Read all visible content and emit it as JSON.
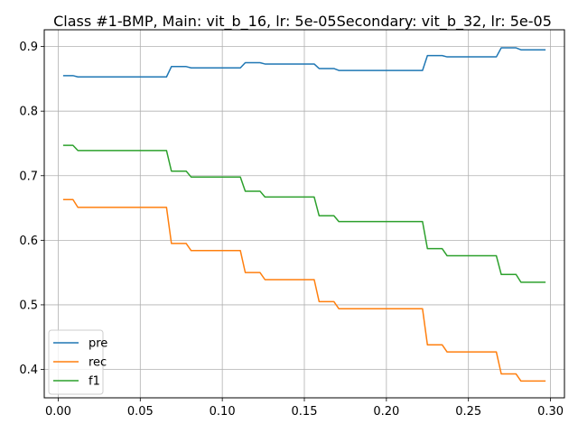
{
  "chart_data": {
    "type": "line",
    "title": "Class #1-BMP, Main: vit_b_16, lr: 5e-05Secondary: vit_b_32, lr: 5e-05",
    "xlabel": "",
    "ylabel": "",
    "xlim": [
      -0.0085,
      0.3085
    ],
    "ylim": [
      0.356,
      0.926
    ],
    "xticks": [
      0.0,
      0.05,
      0.1,
      0.15,
      0.2,
      0.25,
      0.3
    ],
    "xtick_labels": [
      "0.00",
      "0.05",
      "0.10",
      "0.15",
      "0.20",
      "0.25",
      "0.30"
    ],
    "yticks": [
      0.4,
      0.5,
      0.6,
      0.7,
      0.8,
      0.9
    ],
    "ytick_labels": [
      "0.4",
      "0.5",
      "0.6",
      "0.7",
      "0.8",
      "0.9"
    ],
    "grid": true,
    "legend_position": "lower-left",
    "series": [
      {
        "name": "pre",
        "color": "#1f77b4",
        "x": [
          0.003,
          0.009,
          0.012,
          0.066,
          0.069,
          0.078,
          0.081,
          0.111,
          0.114,
          0.123,
          0.126,
          0.156,
          0.159,
          0.168,
          0.171,
          0.222,
          0.225,
          0.234,
          0.237,
          0.267,
          0.27,
          0.279,
          0.282,
          0.297
        ],
        "values": [
          0.855,
          0.855,
          0.853,
          0.853,
          0.869,
          0.869,
          0.867,
          0.867,
          0.875,
          0.875,
          0.873,
          0.873,
          0.866,
          0.866,
          0.863,
          0.863,
          0.886,
          0.886,
          0.884,
          0.884,
          0.898,
          0.898,
          0.895,
          0.895
        ]
      },
      {
        "name": "rec",
        "color": "#ff7f0e",
        "x": [
          0.003,
          0.009,
          0.012,
          0.066,
          0.069,
          0.078,
          0.081,
          0.111,
          0.114,
          0.123,
          0.126,
          0.156,
          0.159,
          0.168,
          0.171,
          0.222,
          0.225,
          0.234,
          0.237,
          0.267,
          0.27,
          0.279,
          0.282,
          0.297
        ],
        "values": [
          0.663,
          0.663,
          0.651,
          0.651,
          0.595,
          0.595,
          0.584,
          0.584,
          0.55,
          0.55,
          0.539,
          0.539,
          0.505,
          0.505,
          0.494,
          0.494,
          0.438,
          0.438,
          0.427,
          0.427,
          0.393,
          0.393,
          0.382,
          0.382
        ]
      },
      {
        "name": "f1",
        "color": "#2ca02c",
        "x": [
          0.003,
          0.009,
          0.012,
          0.066,
          0.069,
          0.078,
          0.081,
          0.111,
          0.114,
          0.123,
          0.126,
          0.156,
          0.159,
          0.168,
          0.171,
          0.222,
          0.225,
          0.234,
          0.237,
          0.267,
          0.27,
          0.279,
          0.282,
          0.297
        ],
        "values": [
          0.747,
          0.747,
          0.739,
          0.739,
          0.707,
          0.707,
          0.698,
          0.698,
          0.676,
          0.676,
          0.667,
          0.667,
          0.638,
          0.638,
          0.629,
          0.629,
          0.587,
          0.587,
          0.576,
          0.576,
          0.547,
          0.547,
          0.535,
          0.535
        ]
      }
    ]
  }
}
